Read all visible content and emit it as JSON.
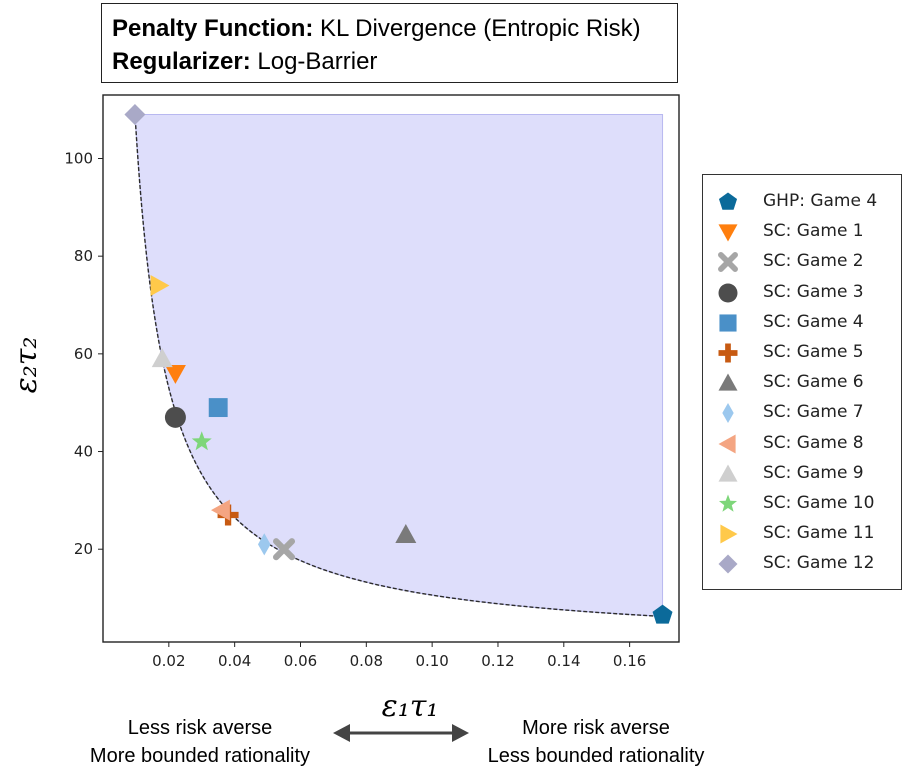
{
  "header": {
    "penalty_label": "Penalty Function:",
    "penalty_value": "KL Divergence (Entropic Risk)",
    "regularizer_label": "Regularizer:",
    "regularizer_value": "Log-Barrier"
  },
  "notes": {
    "left_line1": "Less risk averse",
    "left_line2": "More bounded rationality",
    "right_line1": "More risk averse",
    "right_line2": "Less bounded rationality"
  },
  "chart_data": {
    "type": "scatter",
    "xlabel": "ε₁τ₁",
    "ylabel": "ε₂τ₂",
    "xlim": [
      0.0,
      0.175
    ],
    "ylim": [
      1,
      113
    ],
    "xticks": [
      "0.02",
      "0.04",
      "0.06",
      "0.08",
      "0.10",
      "0.12",
      "0.14",
      "0.16"
    ],
    "xtick_values": [
      0.02,
      0.04,
      0.06,
      0.08,
      0.1,
      0.12,
      0.14,
      0.16
    ],
    "yticks": [
      "20",
      "40",
      "60",
      "80",
      "100"
    ],
    "ytick_values": [
      20,
      40,
      60,
      80,
      100
    ],
    "grid": false,
    "legend_position": "outside-right",
    "frontier": {
      "description_curve": "dashed",
      "product_constant": 1.06,
      "x_range": [
        0.0097,
        0.17
      ],
      "shaded_region_top": 109,
      "color": "#2b2b2b",
      "fill": "#d8d8fa"
    },
    "series": [
      {
        "name": "GHP: Game 4",
        "marker": "pentagon",
        "color": "#0b6a9a",
        "x": 0.17,
        "y": 6.5
      },
      {
        "name": "SC: Game 1",
        "marker": "triangle-down",
        "color": "#ff7f0e",
        "x": 0.022,
        "y": 56
      },
      {
        "name": "SC: Game 2",
        "marker": "x",
        "color": "#a6a6a6",
        "x": 0.055,
        "y": 20
      },
      {
        "name": "SC: Game 3",
        "marker": "circle",
        "color": "#4d4d4d",
        "x": 0.022,
        "y": 47
      },
      {
        "name": "SC: Game 4",
        "marker": "square",
        "color": "#4a90c8",
        "x": 0.035,
        "y": 49
      },
      {
        "name": "SC: Game 5",
        "marker": "plus",
        "color": "#c75a12",
        "x": 0.038,
        "y": 27
      },
      {
        "name": "SC: Game 6",
        "marker": "triangle-up",
        "color": "#7a7a7a",
        "x": 0.092,
        "y": 23
      },
      {
        "name": "SC: Game 7",
        "marker": "diamond-thin",
        "color": "#9cc8ee",
        "x": 0.049,
        "y": 21
      },
      {
        "name": "SC: Game 8",
        "marker": "triangle-left",
        "color": "#f4a582",
        "x": 0.036,
        "y": 28
      },
      {
        "name": "SC: Game 9",
        "marker": "triangle-up",
        "color": "#cfcfcf",
        "x": 0.018,
        "y": 59
      },
      {
        "name": "SC: Game 10",
        "marker": "star",
        "color": "#7ed67a",
        "x": 0.03,
        "y": 42
      },
      {
        "name": "SC: Game 11",
        "marker": "triangle-right",
        "color": "#ffc94a",
        "x": 0.017,
        "y": 74
      },
      {
        "name": "SC: Game 12",
        "marker": "diamond",
        "color": "#a9a9c7",
        "x": 0.0097,
        "y": 109
      }
    ]
  }
}
